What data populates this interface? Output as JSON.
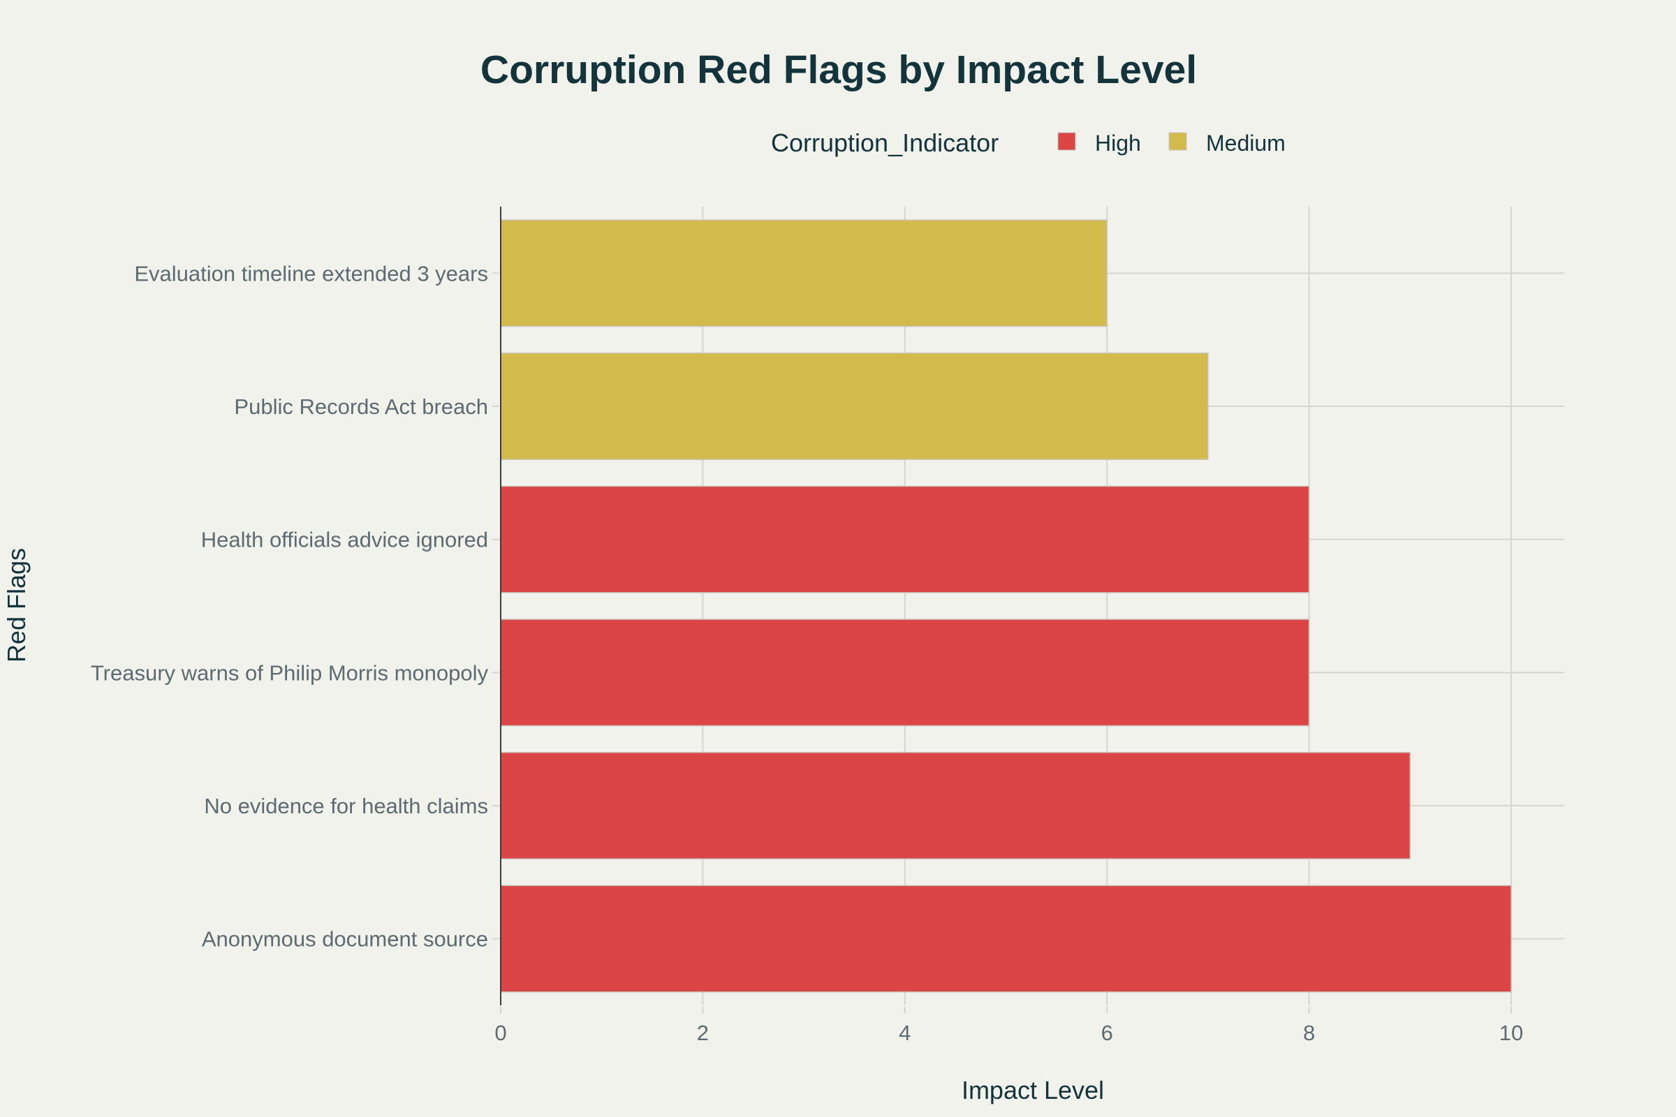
{
  "colors": {
    "background": "#f2f2ed",
    "High": "#db4545",
    "Medium": "#d2ba4c",
    "bar_outline": "#c9c7bf",
    "text_dark": "#13343b",
    "text_gray": "#5e6a71"
  },
  "chart_data": {
    "type": "bar",
    "orientation": "horizontal",
    "title": "Corruption Red Flags by Impact Level",
    "xlabel": "Impact Level",
    "ylabel": "Red Flags",
    "xlim": [
      0,
      10.5
    ],
    "xticks": [
      0,
      2,
      4,
      6,
      8,
      10
    ],
    "grid": true,
    "legend": {
      "title": "Corruption_Indicator",
      "placement": "top-right",
      "orientation": "horizontal",
      "entries": [
        {
          "name": "High",
          "color": "#db4545"
        },
        {
          "name": "Medium",
          "color": "#d2ba4c"
        }
      ]
    },
    "categories": [
      "Evaluation timeline extended 3 years",
      "Public Records Act breach",
      "Health officials advice ignored",
      "Treasury warns of Philip Morris monopoly",
      "No evidence for health claims",
      "Anonymous document source"
    ],
    "bars": [
      {
        "category": "Evaluation timeline extended 3 years",
        "value": 6,
        "indicator": "Medium"
      },
      {
        "category": "Public Records Act breach",
        "value": 7,
        "indicator": "Medium"
      },
      {
        "category": "Health officials advice ignored",
        "value": 8,
        "indicator": "High"
      },
      {
        "category": "Treasury warns of Philip Morris monopoly",
        "value": 8,
        "indicator": "High"
      },
      {
        "category": "No evidence for health claims",
        "value": 9,
        "indicator": "High"
      },
      {
        "category": "Anonymous document source",
        "value": 10,
        "indicator": "High"
      }
    ]
  }
}
